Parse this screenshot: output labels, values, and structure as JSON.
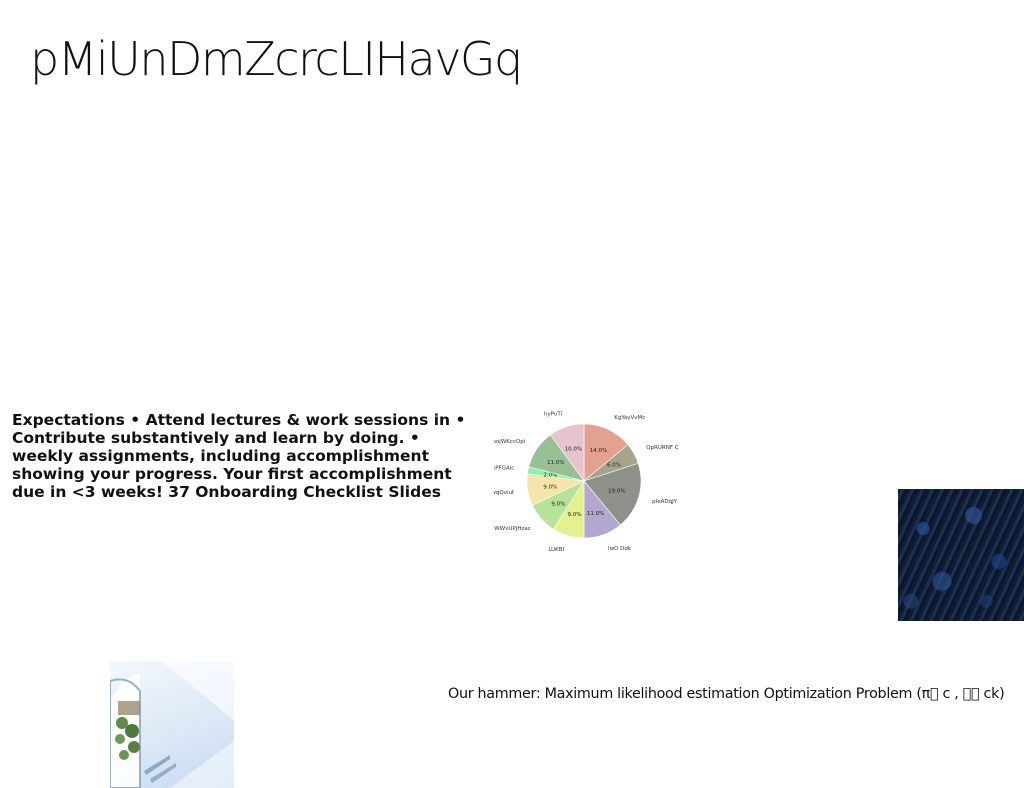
{
  "slide": {
    "title": "pMiUnDmZcrcLIHavGq",
    "expectations_text": "Expectations • Attend lectures & work sessions in • Contribute substantively and learn by doing. • weekly assignments, including accomplishment showing your progress. Your first accomplishment due in <3 weeks! 37 Onboarding Checklist Slides",
    "caption": "Our hammer: Maximum likelihood estimation Optimization Problem (π\u0000 c , \u0000\u0000 ck)"
  },
  "images": {
    "forest_photo": "dark blue forest canopy photo",
    "arch_photo": "white arched interior with hanging plants photo"
  },
  "chart_data": {
    "type": "pie",
    "title": "",
    "slices": [
      {
        "label": "KgYayVvMc",
        "percent": 14.0,
        "color": "#e3a18f"
      },
      {
        "label": "QpRURNF Qj",
        "percent": 6.0,
        "color": "#a8a48c"
      },
      {
        "label": "pleADqJY",
        "percent": 19.0,
        "color": "#8e918a"
      },
      {
        "label": "iwO Ddk",
        "percent": 11.0,
        "color": "#b3a6cf"
      },
      {
        "label": "LUKBI",
        "percent": 9.0,
        "color": "#e3f28c"
      },
      {
        "label": "WWvUPJHzac",
        "percent": 9.0,
        "color": "#b6e39a"
      },
      {
        "label": "ZwqQviuf",
        "percent": 9.0,
        "color": "#f3e6a6"
      },
      {
        "label": "ixPFGAlc",
        "percent": 2.0,
        "color": "#8ff2a8"
      },
      {
        "label": "sojWKccOpi",
        "percent": 11.0,
        "color": "#97c095"
      },
      {
        "label": "hyPuTi",
        "percent": 10.0,
        "color": "#e6c3cd"
      }
    ]
  }
}
